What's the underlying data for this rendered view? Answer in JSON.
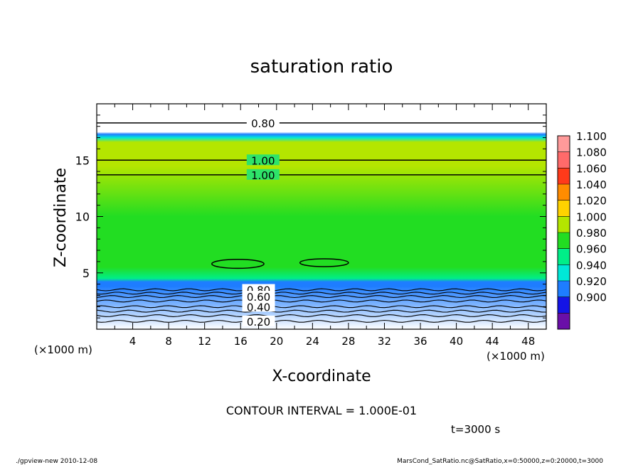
{
  "chart_data": {
    "type": "heatmap",
    "title": "saturation ratio",
    "xlabel": "X-coordinate",
    "ylabel": "Z-coordinate",
    "x_unit_label": "(×1000 m)",
    "y_unit_label": "(×1000 m)",
    "xlim": [
      0,
      50
    ],
    "ylim": [
      0,
      20
    ],
    "x_ticks": [
      4,
      8,
      12,
      16,
      20,
      24,
      28,
      32,
      36,
      40,
      44,
      48
    ],
    "y_ticks": [
      5,
      10,
      15
    ],
    "colorbar": {
      "levels": [
        "1.100",
        "1.080",
        "1.060",
        "1.040",
        "1.020",
        "1.000",
        "0.980",
        "0.960",
        "0.940",
        "0.920",
        "0.900"
      ],
      "colors": [
        "#ff9a9a",
        "#ff6a6a",
        "#ff3a1a",
        "#ff8c00",
        "#ffd200",
        "#b4e600",
        "#22dd22",
        "#00ee88",
        "#00e8d8",
        "#1e7dff",
        "#1414e6",
        "#6a0fa8"
      ]
    },
    "field_profile": [
      {
        "z": 0.0,
        "value": 0.55
      },
      {
        "z": 3.8,
        "value": 0.92
      },
      {
        "z": 4.2,
        "value": 0.93
      },
      {
        "z": 4.5,
        "value": 0.97
      },
      {
        "z": 5.5,
        "value": 0.985
      },
      {
        "z": 10.0,
        "value": 0.99
      },
      {
        "z": 14.5,
        "value": 1.0
      },
      {
        "z": 15.2,
        "value": 1.01
      },
      {
        "z": 16.6,
        "value": 1.0
      },
      {
        "z": 17.0,
        "value": 0.95
      },
      {
        "z": 17.3,
        "value": 0.92
      },
      {
        "z": 17.5,
        "value": 0.8
      }
    ],
    "contour_labels": [
      {
        "label": "0.80",
        "x": 18.5,
        "z": 18.3
      },
      {
        "label": "1.00",
        "x": 18.5,
        "z": 15.0
      },
      {
        "label": "1.00",
        "x": 18.5,
        "z": 13.7
      },
      {
        "label": "0.80",
        "x": 18.0,
        "z": 3.5
      },
      {
        "label": "0.60",
        "x": 18.0,
        "z": 2.9
      },
      {
        "label": "0.40",
        "x": 18.0,
        "z": 2.0
      },
      {
        "label": "0.20",
        "x": 18.0,
        "z": 0.7
      }
    ],
    "contour_lines_z": [
      18.3,
      15.0,
      13.7,
      3.5,
      3.2,
      2.9,
      2.5,
      2.0,
      1.6,
      1.2,
      0.7
    ],
    "closed_contours": [
      {
        "cx": 15.7,
        "cz": 5.8,
        "rx": 2.9,
        "rz": 0.4
      },
      {
        "cx": 25.3,
        "cz": 5.9,
        "rx": 2.7,
        "rz": 0.35
      }
    ],
    "contour_interval_text": "CONTOUR INTERVAL = 1.000E-01",
    "time_text": "t=3000 s"
  },
  "footer": {
    "left": "./gpview-new  2010-12-08",
    "right": "MarsCond_SatRatio.nc@SatRatio,x=0:50000,z=0:20000,t=3000"
  }
}
